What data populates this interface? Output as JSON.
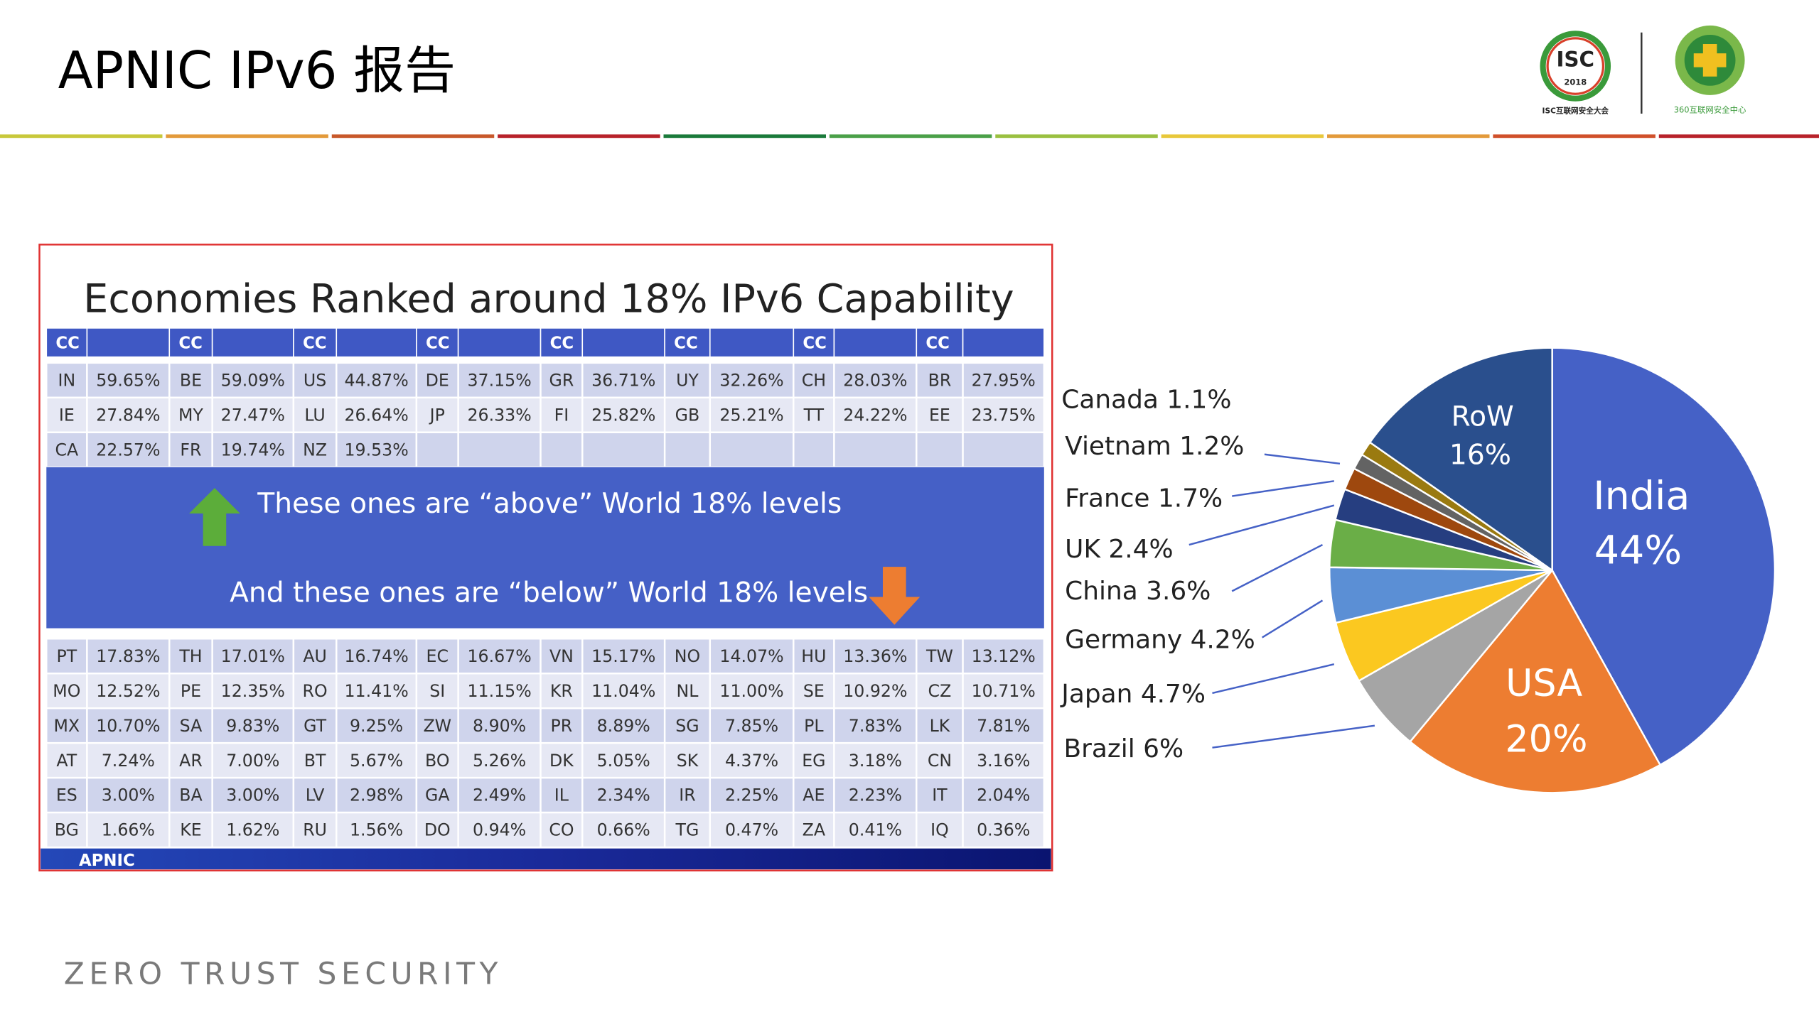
{
  "header": {
    "title": "APNIC IPv6 报告",
    "isc_logo": "ISC",
    "isc_year": "2018",
    "isc_caption": "ISC互联网安全大会",
    "logo_360_caption": "360互联网安全中心"
  },
  "table": {
    "title": "Economies Ranked around 18% IPv6 Capability",
    "header": [
      "CC",
      "CC",
      "CC",
      "CC",
      "CC",
      "CC",
      "CC",
      "CC"
    ],
    "rows_above": [
      [
        "IN",
        "59.65%",
        "BE",
        "59.09%",
        "US",
        "44.87%",
        "DE",
        "37.15%",
        "GR",
        "36.71%",
        "UY",
        "32.26%",
        "CH",
        "28.03%",
        "BR",
        "27.95%"
      ],
      [
        "IE",
        "27.84%",
        "MY",
        "27.47%",
        "LU",
        "26.64%",
        "JP",
        "26.33%",
        "FI",
        "25.82%",
        "GB",
        "25.21%",
        "TT",
        "24.22%",
        "EE",
        "23.75%"
      ],
      [
        "CA",
        "22.57%",
        "FR",
        "19.74%",
        "NZ",
        "19.53%"
      ]
    ],
    "banner_above": "These ones are “above” World  18% levels",
    "banner_below": "And these ones are “below” World 18% levels",
    "rows_below": [
      [
        "PT",
        "17.83%",
        "TH",
        "17.01%",
        "AU",
        "16.74%",
        "EC",
        "16.67%",
        "VN",
        "15.17%",
        "NO",
        "14.07%",
        "HU",
        "13.36%",
        "TW",
        "13.12%"
      ],
      [
        "MO",
        "12.52%",
        "PE",
        "12.35%",
        "RO",
        "11.41%",
        "SI",
        "11.15%",
        "KR",
        "11.04%",
        "NL",
        "11.00%",
        "SE",
        "10.92%",
        "CZ",
        "10.71%"
      ],
      [
        "MX",
        "10.70%",
        "SA",
        "9.83%",
        "GT",
        "9.25%",
        "ZW",
        "8.90%",
        "PR",
        "8.89%",
        "SG",
        "7.85%",
        "PL",
        "7.83%",
        "LK",
        "7.81%"
      ],
      [
        "AT",
        "7.24%",
        "AR",
        "7.00%",
        "BT",
        "5.67%",
        "BO",
        "5.26%",
        "DK",
        "5.05%",
        "SK",
        "4.37%",
        "EG",
        "3.18%",
        "CN",
        "3.16%"
      ],
      [
        "ES",
        "3.00%",
        "BA",
        "3.00%",
        "LV",
        "2.98%",
        "GA",
        "2.49%",
        "IL",
        "2.34%",
        "IR",
        "2.25%",
        "AE",
        "2.23%",
        "IT",
        "2.04%"
      ],
      [
        "BG",
        "1.66%",
        "KE",
        "1.62%",
        "RU",
        "1.56%",
        "DO",
        "0.94%",
        "CO",
        "0.66%",
        "TG",
        "0.47%",
        "ZA",
        "0.41%",
        "IQ",
        "0.36%"
      ]
    ],
    "footer": "APNIC"
  },
  "chart_data": {
    "type": "pie",
    "categories": [
      "India",
      "USA",
      "Brazil",
      "Japan",
      "Germany",
      "China",
      "UK",
      "France",
      "Vietnam",
      "Canada",
      "RoW"
    ],
    "values": [
      44,
      20,
      6,
      4.7,
      4.2,
      3.6,
      2.4,
      1.7,
      1.2,
      1.1,
      16
    ],
    "value_labels": [
      "44%",
      "20%",
      "6%",
      "4.7%",
      "4.2%",
      "3.6%",
      "2.4%",
      "1.7%",
      "1.2%",
      "1.1%",
      "16%"
    ],
    "colors": [
      "#4561c6",
      "#ed7d31",
      "#a5a5a5",
      "#fbc820",
      "#5b8fd5",
      "#6aae47",
      "#263e80",
      "#9e480e",
      "#636363",
      "#9a7a10",
      "#2a4f8d"
    ]
  },
  "footer": {
    "tagline": "ZERO TRUST SECURITY"
  }
}
